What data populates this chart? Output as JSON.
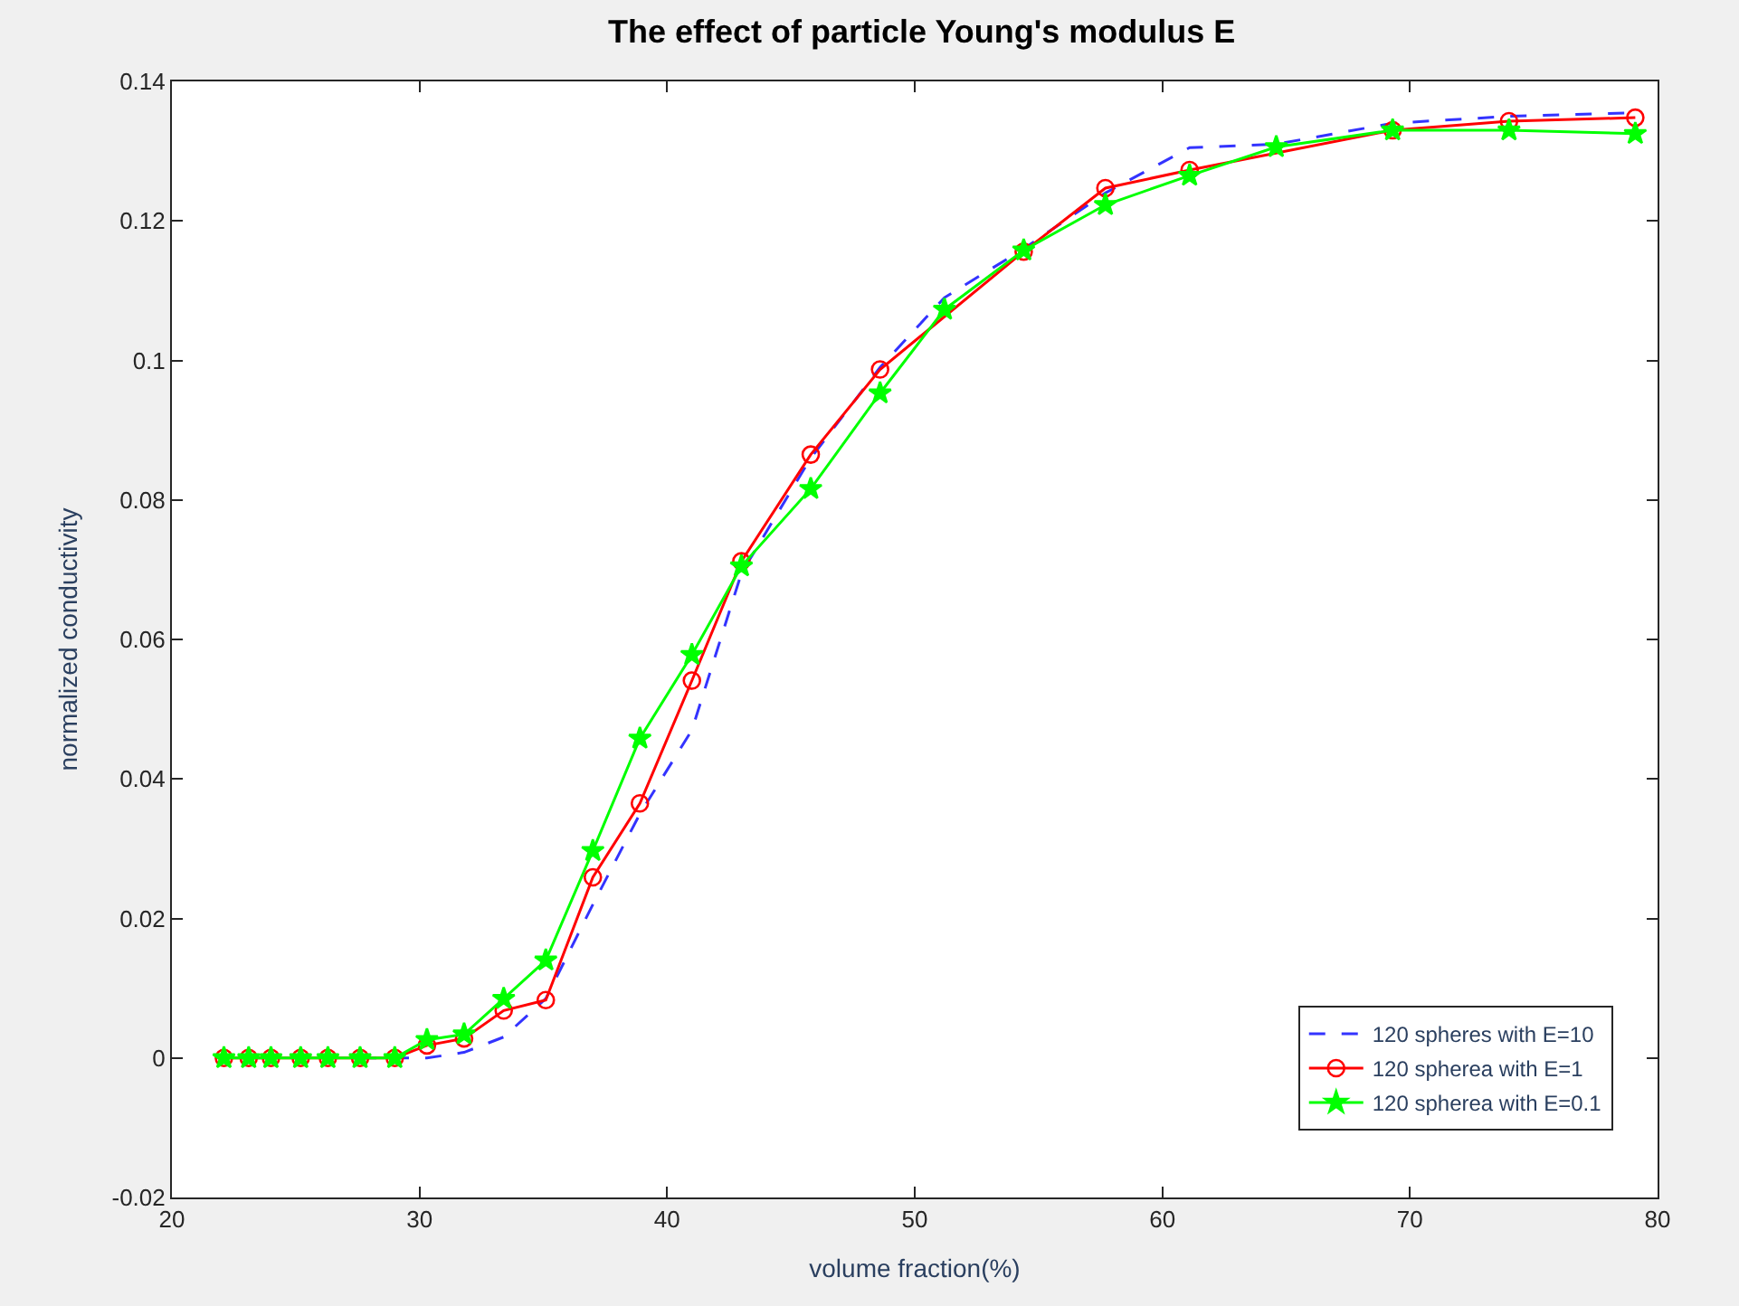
{
  "chart_data": {
    "type": "line",
    "title": "The effect of particle Young's modulus E",
    "xlabel": "volume fraction(%)",
    "ylabel": "normalized conductivity",
    "xlim": [
      20,
      80
    ],
    "ylim": [
      -0.02,
      0.14
    ],
    "xticks": [
      20,
      30,
      40,
      50,
      60,
      70,
      80
    ],
    "yticks": [
      -0.02,
      0,
      0.02,
      0.04,
      0.06,
      0.08,
      0.1,
      0.12,
      0.14
    ],
    "grid": false,
    "legend": "bottom right",
    "series": [
      {
        "name": "120 spheres with E=10",
        "color": "#3333ff",
        "line_style": "dashed",
        "marker": "none",
        "x": [
          27.6,
          29.0,
          30.3,
          31.8,
          33.4,
          35.1,
          37.0,
          38.9,
          41.0,
          43.0,
          45.8,
          48.6,
          51.2,
          54.4,
          57.7,
          61.1,
          64.6,
          69.3,
          74.0,
          79.1
        ],
        "values": [
          0,
          0,
          0,
          0.0008,
          0.003,
          0.0085,
          0.022,
          0.035,
          0.047,
          0.0695,
          0.086,
          0.099,
          0.109,
          0.116,
          0.124,
          0.1305,
          0.131,
          0.134,
          0.135,
          0.1355
        ]
      },
      {
        "name": "120 spherea with E=1",
        "color": "#ff0000",
        "line_style": "solid",
        "marker": "circle",
        "x": [
          22.1,
          23.1,
          24.0,
          25.2,
          26.3,
          27.6,
          29.0,
          30.3,
          31.8,
          33.4,
          35.1,
          37.0,
          38.9,
          41.0,
          43.0,
          45.8,
          48.6,
          54.4,
          57.7,
          61.1,
          69.3,
          74.0,
          79.1
        ],
        "values": [
          0,
          0,
          0,
          0,
          0,
          0,
          0,
          0.0018,
          0.0028,
          0.0068,
          0.0083,
          0.0259,
          0.0365,
          0.0541,
          0.0712,
          0.0865,
          0.0987,
          0.1156,
          0.1247,
          0.1273,
          0.133,
          0.1343,
          0.1348
        ]
      },
      {
        "name": "120 spherea with E=0.1",
        "color": "#00ff00",
        "line_style": "solid",
        "marker": "star",
        "x": [
          22.1,
          23.1,
          24.0,
          25.2,
          26.3,
          27.6,
          29.0,
          30.3,
          31.8,
          33.4,
          35.1,
          37.0,
          38.9,
          41.0,
          43.0,
          45.8,
          48.6,
          51.2,
          54.4,
          57.7,
          61.1,
          64.6,
          69.3,
          74.0,
          79.1
        ],
        "values": [
          0,
          0,
          0,
          0,
          0,
          0,
          0,
          0.0026,
          0.0034,
          0.0085,
          0.014,
          0.0297,
          0.0458,
          0.0578,
          0.0705,
          0.0816,
          0.0953,
          0.1073,
          0.1158,
          0.1223,
          0.1265,
          0.1306,
          0.133,
          0.133,
          0.1325
        ]
      }
    ]
  }
}
